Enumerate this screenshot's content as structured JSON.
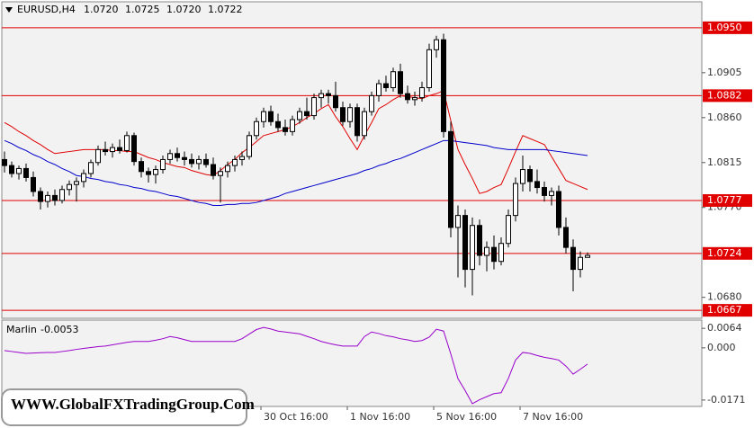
{
  "chart_data": {
    "type": "candlestick",
    "title": "EURUSD,H4",
    "ohlc_labels": [
      "1.0720",
      "1.0725",
      "1.0720",
      "1.0722"
    ],
    "watermark": "WWW.GlobalFXTradingGroup.Com",
    "ylim": [
      1.0659,
      1.0976
    ],
    "yticks": [
      1.0905,
      {
        "value": 1.086,
        "label": "1.0860"
      },
      1.0815,
      {
        "value": 1.077,
        "label": "1.0770"
      },
      {
        "value": 1.068,
        "label": "1.0680"
      }
    ],
    "levels": [
      {
        "value": 1.095,
        "label": "1.0950"
      },
      1.0882,
      1.0777,
      1.0724,
      1.0667
    ],
    "level_color": "#e00000",
    "up_color": "#ffffff",
    "down_color": "#000000",
    "categories": [
      null,
      null,
      null,
      null,
      null,
      null,
      null,
      null,
      null,
      null,
      null,
      null,
      null,
      null,
      null,
      null,
      null,
      null,
      null,
      null,
      null,
      null,
      null,
      null,
      null,
      null,
      null,
      null,
      null,
      null,
      null,
      null,
      null,
      null,
      null,
      null,
      "30 Oct 16:00",
      null,
      null,
      null,
      null,
      null,
      null,
      null,
      null,
      null,
      null,
      null,
      "1 Nov 16:00",
      null,
      null,
      null,
      null,
      null,
      null,
      null,
      null,
      null,
      null,
      null,
      "5 Nov 16:00",
      null,
      null,
      null,
      null,
      null,
      null,
      null,
      null,
      null,
      null,
      null,
      "7 Nov 16:00",
      null,
      null,
      null,
      null,
      null,
      null,
      null,
      null,
      null
    ],
    "candles": [
      [
        1.0818,
        1.0826,
        1.0805,
        1.0812
      ],
      [
        1.0812,
        1.0816,
        1.08,
        1.0804
      ],
      [
        1.0804,
        1.0812,
        1.0798,
        1.0809
      ],
      [
        1.0809,
        1.0814,
        1.0796,
        1.08
      ],
      [
        1.08,
        1.0806,
        1.0781,
        1.0786
      ],
      [
        1.0786,
        1.079,
        1.0768,
        1.0776
      ],
      [
        1.0776,
        1.0786,
        1.077,
        1.0782
      ],
      [
        1.0782,
        1.0788,
        1.0772,
        1.0777
      ],
      [
        1.0777,
        1.0792,
        1.0774,
        1.0788
      ],
      [
        1.0788,
        1.0797,
        1.0782,
        1.0793
      ],
      [
        1.0793,
        1.08,
        1.0776,
        1.0796
      ],
      [
        1.0796,
        1.0808,
        1.079,
        1.0804
      ],
      [
        1.0804,
        1.0818,
        1.08,
        1.0815
      ],
      [
        1.0815,
        1.0832,
        1.0812,
        1.0828
      ],
      [
        1.0828,
        1.0836,
        1.0822,
        1.0826
      ],
      [
        1.0826,
        1.0834,
        1.082,
        1.083
      ],
      [
        1.083,
        1.0838,
        1.0824,
        1.0827
      ],
      [
        1.0827,
        1.0846,
        1.0825,
        1.0842
      ],
      [
        1.0842,
        1.0845,
        1.0812,
        1.0816
      ],
      [
        1.0816,
        1.082,
        1.08,
        1.0806
      ],
      [
        1.0806,
        1.081,
        1.0795,
        1.0803
      ],
      [
        1.0803,
        1.0812,
        1.0794,
        1.0808
      ],
      [
        1.0808,
        1.0822,
        1.0804,
        1.0818
      ],
      [
        1.0818,
        1.0828,
        1.0814,
        1.0824
      ],
      [
        1.0824,
        1.083,
        1.0816,
        1.082
      ],
      [
        1.082,
        1.0826,
        1.0812,
        1.0818
      ],
      [
        1.0818,
        1.0824,
        1.081,
        1.0814
      ],
      [
        1.0814,
        1.0822,
        1.0808,
        1.0818
      ],
      [
        1.0818,
        1.0824,
        1.081,
        1.0813
      ],
      [
        1.0813,
        1.082,
        1.0798,
        1.0802
      ],
      [
        1.0802,
        1.081,
        1.0775,
        1.0806
      ],
      [
        1.0806,
        1.0816,
        1.08,
        1.0812
      ],
      [
        1.0812,
        1.0822,
        1.0806,
        1.0818
      ],
      [
        1.0818,
        1.0826,
        1.0812,
        1.0821
      ],
      [
        1.0821,
        1.0846,
        1.0818,
        1.0842
      ],
      [
        1.0842,
        1.086,
        1.0838,
        1.0856
      ],
      [
        1.0856,
        1.087,
        1.085,
        1.0866
      ],
      [
        1.0866,
        1.0872,
        1.0852,
        1.0856
      ],
      [
        1.0856,
        1.0864,
        1.0846,
        1.085
      ],
      [
        1.085,
        1.0858,
        1.0842,
        1.0846
      ],
      [
        1.0846,
        1.0862,
        1.0842,
        1.0858
      ],
      [
        1.0858,
        1.087,
        1.0854,
        1.0866
      ],
      [
        1.0866,
        1.088,
        1.0858,
        1.0862
      ],
      [
        1.0862,
        1.0884,
        1.0858,
        1.088
      ],
      [
        1.088,
        1.0888,
        1.087,
        1.0884
      ],
      [
        1.0884,
        1.0888,
        1.0874,
        1.0882
      ],
      [
        1.0882,
        1.0896,
        1.0866,
        1.087
      ],
      [
        1.087,
        1.0876,
        1.0852,
        1.0856
      ],
      [
        1.0856,
        1.0874,
        1.085,
        1.087
      ],
      [
        1.087,
        1.0874,
        1.0836,
        1.0842
      ],
      [
        1.0842,
        1.087,
        1.0838,
        1.0866
      ],
      [
        1.0866,
        1.0886,
        1.0862,
        1.0882
      ],
      [
        1.0882,
        1.0898,
        1.0876,
        1.0894
      ],
      [
        1.0894,
        1.0902,
        1.0886,
        1.089
      ],
      [
        1.089,
        1.091,
        1.0886,
        1.0906
      ],
      [
        1.0906,
        1.0914,
        1.088,
        1.0884
      ],
      [
        1.0884,
        1.0892,
        1.0874,
        1.0878
      ],
      [
        1.0878,
        1.0886,
        1.0872,
        1.088
      ],
      [
        1.088,
        1.0896,
        1.0876,
        1.089
      ],
      [
        1.089,
        1.0934,
        1.0886,
        1.0928
      ],
      [
        1.0928,
        1.0942,
        1.092,
        1.0938
      ],
      [
        1.0938,
        1.0944,
        1.084,
        1.0846
      ],
      [
        1.0846,
        1.0856,
        1.074,
        1.075
      ],
      [
        1.075,
        1.0772,
        1.07,
        1.0762
      ],
      [
        1.0762,
        1.0768,
        1.069,
        1.0708
      ],
      [
        1.0708,
        1.076,
        1.0682,
        1.0752
      ],
      [
        1.0752,
        1.0758,
        1.0712,
        1.0722
      ],
      [
        1.0722,
        1.0736,
        1.0706,
        1.073
      ],
      [
        1.073,
        1.0742,
        1.0708,
        1.0716
      ],
      [
        1.0716,
        1.074,
        1.0712,
        1.0734
      ],
      [
        1.0734,
        1.0768,
        1.073,
        1.0762
      ],
      [
        1.0762,
        1.08,
        1.0756,
        1.0794
      ],
      [
        1.0794,
        1.0822,
        1.0786,
        1.0808
      ],
      [
        1.0808,
        1.0812,
        1.0786,
        1.0796
      ],
      [
        1.0796,
        1.0808,
        1.0784,
        1.079
      ],
      [
        1.079,
        1.0796,
        1.0776,
        1.0782
      ],
      [
        1.0782,
        1.079,
        1.0772,
        1.0786
      ],
      [
        1.0786,
        1.0792,
        1.0742,
        1.075
      ],
      [
        1.075,
        1.076,
        1.0724,
        1.073
      ],
      [
        1.073,
        1.0738,
        1.0686,
        1.0708
      ],
      [
        1.0708,
        1.0726,
        1.07,
        1.072
      ],
      [
        1.072,
        1.0725,
        1.072,
        1.0722
      ]
    ],
    "moving_averages": [
      {
        "color": "#e00000",
        "values": [
          1.0855,
          1.0851,
          1.0846,
          1.0842,
          1.0837,
          1.0833,
          1.0828,
          1.0824,
          1.0825,
          1.0826,
          1.0827,
          1.0828,
          1.0828,
          1.0828,
          1.0828,
          1.0827,
          1.0827,
          1.0826,
          1.0826,
          1.0823,
          1.082,
          1.0818,
          1.0815,
          1.0813,
          1.0811,
          1.081,
          1.0807,
          1.0805,
          1.0803,
          1.0802,
          1.0807,
          1.0813,
          1.0818,
          1.0825,
          1.083,
          1.0836,
          1.0842,
          1.0844,
          1.0846,
          1.0848,
          1.0851,
          1.0855,
          1.086,
          1.0864,
          1.0869,
          1.0873,
          1.0861,
          1.0851,
          1.0839,
          1.0828,
          1.0842,
          1.0855,
          1.0869,
          1.0873,
          1.0878,
          1.0882,
          1.0881,
          1.088,
          1.0879,
          1.0882,
          1.0884,
          1.0887,
          1.0857,
          1.0828,
          1.0813,
          1.0799,
          1.0784,
          1.0786,
          1.079,
          1.0793,
          1.0809,
          1.0826,
          1.0842,
          1.0839,
          1.0836,
          1.0833,
          1.0821,
          1.0809,
          1.0797,
          1.0794,
          1.0791,
          1.0788
        ]
      },
      {
        "color": "#0000cc",
        "values": [
          1.0837,
          1.0834,
          1.083,
          1.0827,
          1.0823,
          1.082,
          1.0816,
          1.0813,
          1.0809,
          1.0806,
          1.0802,
          1.0801,
          1.0799,
          1.0798,
          1.0796,
          1.0795,
          1.0793,
          1.0792,
          1.079,
          1.0789,
          1.0787,
          1.0786,
          1.0784,
          1.0782,
          1.0781,
          1.0779,
          1.0777,
          1.0775,
          1.0774,
          1.0772,
          1.0772,
          1.0773,
          1.0773,
          1.0774,
          1.0774,
          1.0775,
          1.0777,
          1.0779,
          1.0781,
          1.0784,
          1.0786,
          1.0788,
          1.079,
          1.0792,
          1.0794,
          1.0796,
          1.0798,
          1.08,
          1.0802,
          1.0804,
          1.0807,
          1.0809,
          1.0812,
          1.0814,
          1.0817,
          1.0819,
          1.0822,
          1.0825,
          1.0828,
          1.0831,
          1.0834,
          1.0837,
          1.0837,
          1.0836,
          1.0835,
          1.0834,
          1.0833,
          1.0832,
          1.083,
          1.0829,
          1.0828,
          1.0828,
          1.0828,
          1.0828,
          1.0828,
          1.0828,
          1.0827,
          1.0826,
          1.0825,
          1.0824,
          1.0823,
          1.0822
        ]
      }
    ],
    "indicator": {
      "name": "Marlin",
      "value_label": "-0.0053",
      "color": "#9900cc",
      "ylim": [
        -0.0192,
        0.0091
      ],
      "yticks": [
        0.0064,
        {
          "value": 0,
          "label": "0.000"
        },
        -0.0171
      ],
      "values": [
        -0.0009,
        -0.0012,
        -0.0015,
        -0.0018,
        -0.0017,
        -0.0016,
        -0.0015,
        -0.0015,
        -0.0012,
        -0.0009,
        -0.0005,
        -0.0002,
        0.0001,
        0.0004,
        0.0006,
        0.001,
        0.0014,
        0.0018,
        0.0021,
        0.0021,
        0.0021,
        0.0025,
        0.003,
        0.0037,
        0.0033,
        0.0027,
        0.0021,
        0.0021,
        0.0021,
        0.0021,
        0.0021,
        0.0021,
        0.0021,
        0.003,
        0.0045,
        0.006,
        0.0067,
        0.0062,
        0.0055,
        0.0052,
        0.0049,
        0.0046,
        0.0038,
        0.003,
        0.0021,
        0.0015,
        0.001,
        0.0006,
        0.0006,
        0.0006,
        0.0037,
        0.0052,
        0.0047,
        0.004,
        0.0036,
        0.003,
        0.0026,
        0.0021,
        0.0024,
        0.0035,
        0.0061,
        0.0055,
        -0.002,
        -0.0101,
        -0.014,
        -0.0183,
        -0.017,
        -0.016,
        -0.015,
        -0.0147,
        -0.01,
        -0.004,
        -0.0015,
        -0.0018,
        -0.0025,
        -0.0031,
        -0.0035,
        -0.004,
        -0.006,
        -0.0086,
        -0.007,
        -0.0053
      ]
    }
  }
}
